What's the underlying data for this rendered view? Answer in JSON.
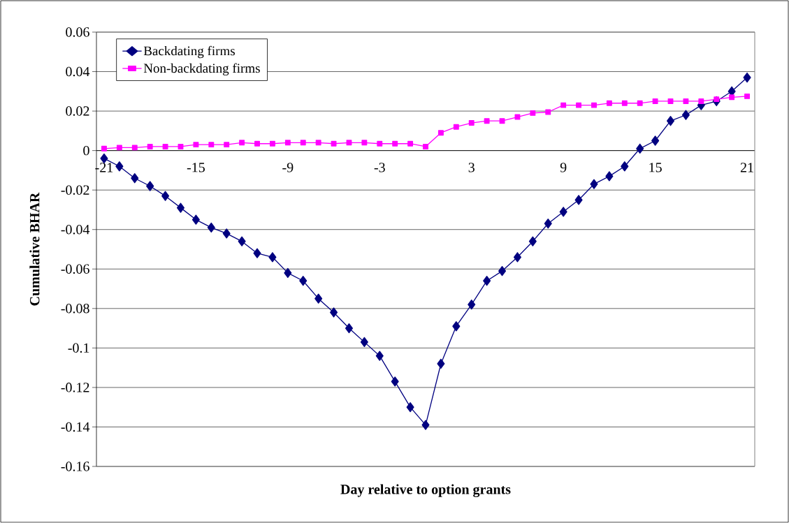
{
  "chart_data": {
    "type": "line",
    "xlabel": "Day relative to option grants",
    "ylabel": "Cumulative BHAR",
    "x": [
      -21,
      -20,
      -19,
      -18,
      -17,
      -16,
      -15,
      -14,
      -13,
      -12,
      -11,
      -10,
      -9,
      -8,
      -7,
      -6,
      -5,
      -4,
      -3,
      -2,
      -1,
      0,
      1,
      2,
      3,
      4,
      5,
      6,
      7,
      8,
      9,
      10,
      11,
      12,
      13,
      14,
      15,
      16,
      17,
      18,
      19,
      20,
      21
    ],
    "series": [
      {
        "name": "Backdating firms",
        "color": "#000080",
        "marker": "diamond",
        "values": [
          -0.004,
          -0.008,
          -0.014,
          -0.018,
          -0.023,
          -0.029,
          -0.035,
          -0.039,
          -0.042,
          -0.046,
          -0.052,
          -0.054,
          -0.062,
          -0.066,
          -0.075,
          -0.082,
          -0.09,
          -0.097,
          -0.104,
          -0.117,
          -0.13,
          -0.139,
          -0.108,
          -0.089,
          -0.078,
          -0.066,
          -0.061,
          -0.054,
          -0.046,
          -0.037,
          -0.031,
          -0.025,
          -0.017,
          -0.013,
          -0.008,
          0.001,
          0.005,
          0.015,
          0.018,
          0.023,
          0.025,
          0.03,
          0.037
        ]
      },
      {
        "name": "Non-backdating firms",
        "color": "#ff00ff",
        "marker": "square",
        "values": [
          0.001,
          0.0015,
          0.0015,
          0.002,
          0.002,
          0.002,
          0.003,
          0.003,
          0.003,
          0.004,
          0.0035,
          0.0035,
          0.004,
          0.004,
          0.004,
          0.0035,
          0.004,
          0.004,
          0.0035,
          0.0035,
          0.0035,
          0.002,
          0.009,
          0.012,
          0.014,
          0.015,
          0.015,
          0.017,
          0.019,
          0.0195,
          0.023,
          0.023,
          0.023,
          0.024,
          0.024,
          0.024,
          0.025,
          0.025,
          0.025,
          0.025,
          0.026,
          0.027,
          0.0275
        ]
      }
    ],
    "xlim": [
      -21.5,
      21.5
    ],
    "xticks": [
      -21,
      -15,
      -9,
      -3,
      3,
      9,
      15,
      21
    ],
    "ylim": [
      -0.16,
      0.06
    ],
    "yticks": [
      -0.16,
      -0.14,
      -0.12,
      -0.1,
      -0.08,
      -0.06,
      -0.04,
      -0.02,
      0,
      0.02,
      0.04,
      0.06
    ],
    "grid": "y",
    "legend": "top left",
    "line_style": "solid"
  }
}
